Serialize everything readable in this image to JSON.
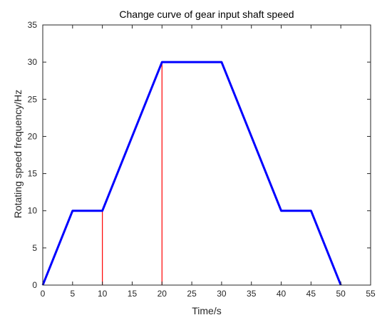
{
  "chart_data": {
    "type": "line",
    "title": "Change curve of gear input shaft speed",
    "xlabel": "Time/s",
    "ylabel": "Rotating speed frequency/Hz",
    "xlim": [
      0,
      55
    ],
    "ylim": [
      0,
      35
    ],
    "xticks": [
      0,
      5,
      10,
      15,
      20,
      25,
      30,
      35,
      40,
      45,
      50,
      55
    ],
    "yticks": [
      0,
      5,
      10,
      15,
      20,
      25,
      30,
      35
    ],
    "grid": false,
    "series": [
      {
        "color": "#0000ff",
        "x": [
          0,
          5,
          10,
          20,
          30,
          40,
          45,
          50
        ],
        "y": [
          0,
          10,
          10,
          30,
          30,
          10,
          10,
          0
        ]
      }
    ],
    "annotations": [
      {
        "type": "vertical-line",
        "color": "#ff0000",
        "x": 10,
        "y_from": 0,
        "y_to": 10
      },
      {
        "type": "vertical-line",
        "color": "#ff0000",
        "x": 20,
        "y_from": 0,
        "y_to": 30
      }
    ]
  }
}
